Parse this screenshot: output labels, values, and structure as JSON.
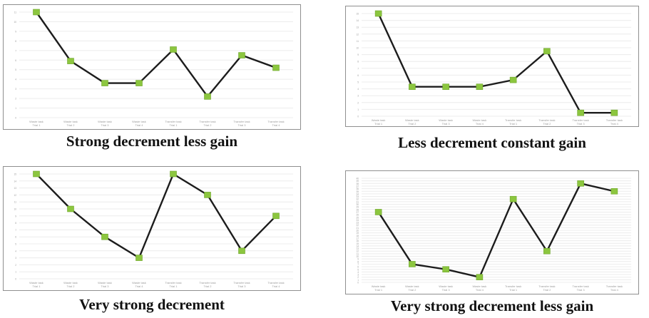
{
  "charts": [
    {
      "caption": "Strong decrement less gain"
    },
    {
      "caption": "Less decrement constant gain"
    },
    {
      "caption": "Very strong decrement"
    },
    {
      "caption": "Very strong decrement less gain"
    }
  ],
  "colors": {
    "line": "#1c1c1c",
    "marker": "#8cc63f",
    "grid": "#ececec",
    "frame": "#8f8f8f"
  },
  "chart_data": [
    {
      "type": "line",
      "title": "Strong decrement less gain",
      "categories": [
        "Waste task Trial 1",
        "Waste task Trial 2",
        "Waste task Trial 3",
        "Waste task Trial 4",
        "Transfer task Trial 1",
        "Transfer task Trial 2",
        "Transfer task Trial 3",
        "Transfer task Trial 4"
      ],
      "values": [
        11,
        5.9,
        3.6,
        3.6,
        7.1,
        2.2,
        6.5,
        5.2
      ],
      "ylim": [
        0,
        11
      ],
      "grid": true
    },
    {
      "type": "line",
      "title": "Less decrement constant gain",
      "categories": [
        "Waste task Trial 1",
        "Waste task Trial 2",
        "Waste task Trial 3",
        "Waste task Trial 4",
        "Transfer task Trial 1",
        "Transfer task Trial 2",
        "Transfer task Trial 3",
        "Transfer task Trial 4"
      ],
      "values": [
        15,
        4.3,
        4.3,
        4.3,
        5.3,
        9.5,
        0.5,
        0.5
      ],
      "ylim": [
        0,
        15
      ],
      "grid": true
    },
    {
      "type": "line",
      "title": "Very strong decrement",
      "categories": [
        "Waste task Trial 1",
        "Waste task Trial 2",
        "Waste task Trial 3",
        "Waste task Trial 4",
        "Transfer task Trial 1",
        "Transfer task Trial 2",
        "Transfer task Trial 3",
        "Transfer task Trial 4"
      ],
      "values": [
        15,
        10,
        6,
        3,
        15,
        12,
        4,
        9
      ],
      "ylim": [
        0,
        15
      ],
      "grid": true
    },
    {
      "type": "line",
      "title": "Very strong decrement less gain",
      "categories": [
        "Waste task Trial 1",
        "Waste task Trial 2",
        "Waste task Trial 3",
        "Waste task Trial 4",
        "Transfer task Trial 1",
        "Transfer task Trial 2",
        "Transfer task Trial 3",
        "Transfer task Trial 4"
      ],
      "values": [
        27,
        7,
        5,
        2,
        32,
        12,
        38,
        35
      ],
      "ylim": [
        0,
        40
      ],
      "grid": true
    }
  ]
}
